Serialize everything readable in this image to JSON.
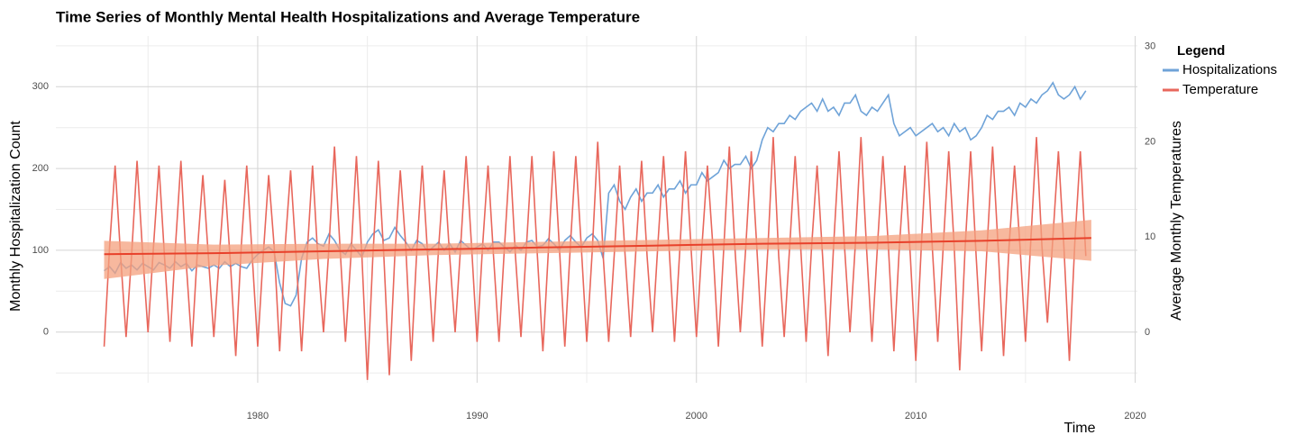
{
  "chart_data": {
    "type": "line",
    "title": "Time Series of Monthly Mental Health Hospitalizations and Average Temperature",
    "xlabel": "Time",
    "ylabel": "Monthly Hospitalization Count",
    "y2label": "Average Monthly Temperatures",
    "legend_title": "Legend",
    "legend": "right",
    "grid": true,
    "xlim": [
      1970.8,
      2020.1
    ],
    "xticks": [
      1980,
      1990,
      2000,
      2010,
      2020
    ],
    "xminor": [
      1975,
      1985,
      1995,
      2005,
      2015
    ],
    "ylim": [
      -62,
      362
    ],
    "yticks": [
      0,
      100,
      200,
      300
    ],
    "yminor": [
      -50,
      50,
      150,
      250,
      350
    ],
    "y2lim": [
      -5.3,
      31.1
    ],
    "y2ticks": [
      0,
      10,
      20,
      30
    ],
    "x": [
      1973,
      1973.25,
      1973.5,
      1973.75,
      1974,
      1974.25,
      1974.5,
      1974.75,
      1975,
      1975.25,
      1975.5,
      1975.75,
      1976,
      1976.25,
      1976.5,
      1976.75,
      1977,
      1977.25,
      1977.5,
      1977.75,
      1978,
      1978.25,
      1978.5,
      1978.75,
      1979,
      1979.25,
      1979.5,
      1979.75,
      1980,
      1980.25,
      1980.5,
      1980.75,
      1981,
      1981.25,
      1981.5,
      1981.75,
      1982,
      1982.25,
      1982.5,
      1982.75,
      1983,
      1983.25,
      1983.5,
      1983.75,
      1984,
      1984.25,
      1984.5,
      1984.75,
      1985,
      1985.25,
      1985.5,
      1985.75,
      1986,
      1986.25,
      1986.5,
      1986.75,
      1987,
      1987.25,
      1987.5,
      1987.75,
      1988,
      1988.25,
      1988.5,
      1988.75,
      1989,
      1989.25,
      1989.5,
      1989.75,
      1990,
      1990.25,
      1990.5,
      1990.75,
      1991,
      1991.25,
      1991.5,
      1991.75,
      1992,
      1992.25,
      1992.5,
      1992.75,
      1993,
      1993.25,
      1993.5,
      1993.75,
      1994,
      1994.25,
      1994.5,
      1994.75,
      1995,
      1995.25,
      1995.5,
      1995.75,
      1996,
      1996.25,
      1996.5,
      1996.75,
      1997,
      1997.25,
      1997.5,
      1997.75,
      1998,
      1998.25,
      1998.5,
      1998.75,
      1999,
      1999.25,
      1999.5,
      1999.75,
      2000,
      2000.25,
      2000.5,
      2000.75,
      2001,
      2001.25,
      2001.5,
      2001.75,
      2002,
      2002.25,
      2002.5,
      2002.75,
      2003,
      2003.25,
      2003.5,
      2003.75,
      2004,
      2004.25,
      2004.5,
      2004.75,
      2005,
      2005.25,
      2005.5,
      2005.75,
      2006,
      2006.25,
      2006.5,
      2006.75,
      2007,
      2007.25,
      2007.5,
      2007.75,
      2008,
      2008.25,
      2008.5,
      2008.75,
      2009,
      2009.25,
      2009.5,
      2009.75,
      2010,
      2010.25,
      2010.5,
      2010.75,
      2011,
      2011.25,
      2011.5,
      2011.75,
      2012,
      2012.25,
      2012.5,
      2012.75,
      2013,
      2013.25,
      2013.5,
      2013.75,
      2014,
      2014.25,
      2014.5,
      2014.75,
      2015,
      2015.25,
      2015.5,
      2015.75,
      2016,
      2016.25,
      2016.5,
      2016.75,
      2017,
      2017.25,
      2017.5,
      2017.75
    ],
    "series": [
      {
        "name": "Hospitalizations",
        "color": "#6fa3d8",
        "axis": "y",
        "values": [
          75,
          80,
          72,
          85,
          78,
          82,
          76,
          84,
          80,
          76,
          85,
          82,
          78,
          86,
          80,
          84,
          75,
          82,
          80,
          78,
          82,
          78,
          86,
          80,
          84,
          80,
          78,
          88,
          95,
          100,
          104,
          98,
          60,
          35,
          32,
          45,
          90,
          110,
          115,
          108,
          105,
          120,
          112,
          100,
          95,
          108,
          100,
          92,
          110,
          120,
          125,
          112,
          115,
          128,
          118,
          110,
          100,
          112,
          108,
          98,
          104,
          110,
          100,
          108,
          98,
          112,
          106,
          100,
          104,
          108,
          100,
          110,
          110,
          104,
          98,
          106,
          100,
          110,
          112,
          104,
          106,
          114,
          108,
          100,
          112,
          118,
          110,
          104,
          115,
          120,
          112,
          90,
          170,
          180,
          160,
          150,
          165,
          175,
          160,
          170,
          170,
          180,
          165,
          175,
          175,
          185,
          170,
          180,
          180,
          195,
          185,
          190,
          195,
          210,
          200,
          205,
          205,
          215,
          200,
          210,
          235,
          250,
          245,
          255,
          255,
          265,
          260,
          270,
          275,
          280,
          270,
          285,
          270,
          275,
          265,
          280,
          280,
          290,
          270,
          265,
          275,
          270,
          280,
          290,
          255,
          240,
          245,
          250,
          240,
          245,
          250,
          255,
          245,
          250,
          240,
          255,
          245,
          250,
          235,
          240,
          250,
          265,
          260,
          270,
          270,
          275,
          265,
          280,
          275,
          285,
          280,
          290,
          295,
          305,
          290,
          285,
          290,
          300,
          285,
          295
        ]
      },
      {
        "name": "Temperature",
        "color": "#e8675c",
        "axis": "y2",
        "values": [
          -1.5,
          9,
          17.5,
          8,
          -0.5,
          8,
          18,
          8.5,
          0,
          9,
          17.5,
          8,
          -1,
          9,
          18,
          7,
          -1.5,
          8.5,
          16.5,
          8,
          -0.5,
          8,
          16,
          7.5,
          -2.5,
          9,
          17.5,
          8,
          -1.5,
          8,
          16.5,
          9,
          -2,
          9,
          17,
          8,
          -2,
          8,
          17.5,
          7.5,
          0,
          9,
          19.5,
          9,
          -1,
          8,
          18.5,
          8,
          -5,
          8,
          18,
          8,
          -4.5,
          8,
          17,
          9,
          -3,
          8.5,
          17.5,
          8,
          -1,
          9,
          17,
          8,
          0,
          9,
          18.5,
          9,
          -1,
          9,
          17.5,
          8,
          -1,
          9,
          18.5,
          8,
          -0.5,
          9,
          18.5,
          8,
          -2,
          8.5,
          19,
          9,
          -1.5,
          9,
          18.5,
          9,
          -1,
          8.5,
          20,
          8,
          -1,
          8,
          17.5,
          8,
          -0.5,
          9,
          18,
          8,
          0,
          9.5,
          18.5,
          9,
          -1,
          9,
          19,
          9,
          -0.5,
          9,
          17.5,
          9,
          -1.5,
          9,
          19.5,
          9,
          0,
          9,
          19,
          9,
          -1.5,
          8.5,
          20.5,
          8,
          -0.5,
          9,
          18.5,
          9,
          -1,
          9,
          17.5,
          8,
          -2.5,
          9,
          19,
          9,
          0,
          9.5,
          20.5,
          9,
          -1,
          9,
          18.5,
          9,
          -2,
          9,
          17.5,
          8,
          -3,
          9,
          20,
          9,
          -1,
          9,
          19,
          9,
          -4,
          9,
          19,
          8,
          -2,
          9,
          19.5,
          9,
          -2.5,
          9,
          17.5,
          9,
          -1,
          10,
          20.5,
          9,
          1,
          10,
          19,
          9,
          -3,
          9.5,
          19,
          8
        ]
      }
    ],
    "trend": {
      "axis": "y2",
      "color": "#e8412b",
      "band_color": "#f4a07e",
      "x": [
        1973,
        1978,
        1983,
        1988,
        1993,
        1998,
        2003,
        2008,
        2013,
        2018
      ],
      "values": [
        8.2,
        8.3,
        8.5,
        8.7,
        8.9,
        9.1,
        9.3,
        9.4,
        9.6,
        9.9
      ],
      "lower": [
        5.6,
        7.0,
        7.7,
        8.1,
        8.3,
        8.5,
        8.7,
        8.7,
        8.5,
        7.5
      ],
      "upper": [
        9.6,
        9.2,
        9.3,
        9.3,
        9.5,
        9.7,
        9.9,
        10.1,
        10.7,
        11.8
      ]
    }
  }
}
